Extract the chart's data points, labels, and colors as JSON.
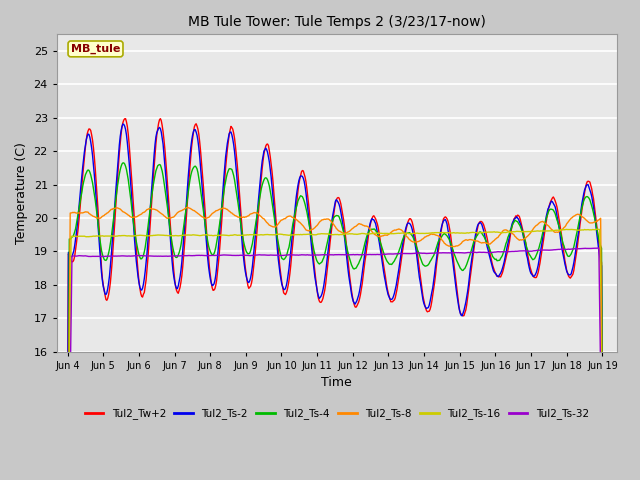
{
  "title": "MB Tule Tower: Tule Temps 2 (3/23/17-now)",
  "xlabel": "Time",
  "ylabel": "Temperature (C)",
  "ylim": [
    16.0,
    25.5
  ],
  "yticks": [
    16.0,
    17.0,
    18.0,
    19.0,
    20.0,
    21.0,
    22.0,
    23.0,
    24.0,
    25.0
  ],
  "figure_bg": "#c8c8c8",
  "plot_bg": "#e8e8e8",
  "grid_color": "white",
  "annotation_text": "MB_tule",
  "annotation_bg": "#ffffcc",
  "annotation_border": "#aaaa00",
  "annotation_text_color": "#880000",
  "series_colors": {
    "Tul2_Tw+2": "#ff0000",
    "Tul2_Ts-2": "#0000ee",
    "Tul2_Ts-4": "#00bb00",
    "Tul2_Ts-8": "#ff8800",
    "Tul2_Ts-16": "#cccc00",
    "Tul2_Ts-32": "#9900cc"
  },
  "xtick_labels": [
    "Jun 4",
    "Jun 5",
    "Jun 6",
    "Jun 7",
    "Jun 8",
    "Jun 9",
    "Jun 10",
    "Jun 11",
    "Jun 12",
    "Jun 13",
    "Jun 14",
    "Jun 15",
    "Jun 16",
    "Jun 17",
    "Jun 18",
    "Jun 19"
  ],
  "legend_entries": [
    "Tul2_Tw+2",
    "Tul2_Ts-2",
    "Tul2_Ts-4",
    "Tul2_Ts-8",
    "Tul2_Ts-16",
    "Tul2_Ts-32"
  ]
}
